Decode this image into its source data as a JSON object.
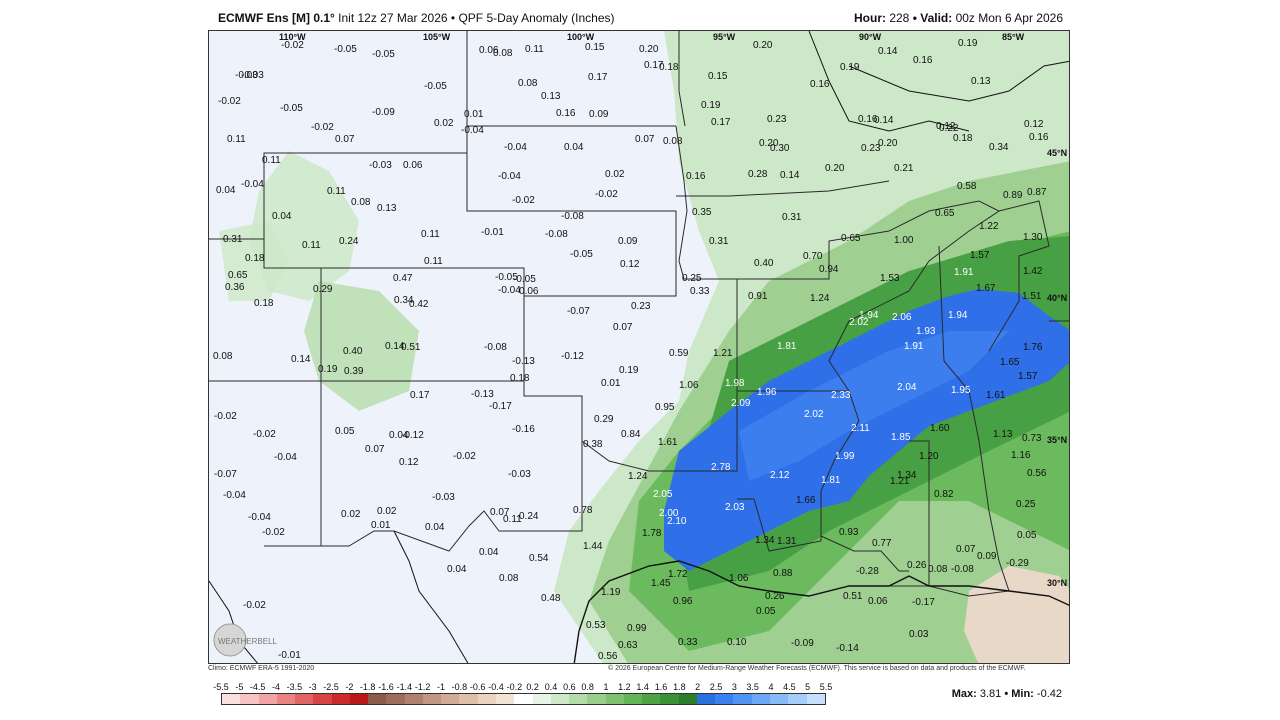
{
  "header": {
    "model": "ECMWF Ens [M] 0.1",
    "deg": "°",
    "init": " Init 12z 27 Mar 2026",
    "bullet": " • ",
    "product": "QPF 5-Day Anomaly (Inches)",
    "hour_label": "Hour:",
    "hour_value": " 228 ",
    "valid_label": "• Valid:",
    "valid_value": " 00z Mon 6 Apr 2026"
  },
  "lon_labels": [
    "110°W",
    "105°W",
    "100°W",
    "95°W",
    "90°W",
    "85°W"
  ],
  "lat_labels": [
    "45°N",
    "40°N",
    "35°N",
    "30°N"
  ],
  "footer": {
    "climo": "Climo: ECMWF ERA-5 1991-2020",
    "copyright": "© 2026 European Centre for Medium-Range Weather Forecasts (ECMWF). This service is based on data and products of the ECMWF."
  },
  "colorbar": {
    "labels": [
      "-5.5",
      "-5",
      "-4.5",
      "-4",
      "-3.5",
      "-3",
      "-2.5",
      "-2",
      "-1.8",
      "-1.6",
      "-1.4",
      "-1.2",
      "-1",
      "-0.8",
      "-0.6",
      "-0.4",
      "-0.2",
      "0.2",
      "0.4",
      "0.6",
      "0.8",
      "1",
      "1.2",
      "1.4",
      "1.6",
      "1.8",
      "2",
      "2.5",
      "3",
      "3.5",
      "4",
      "4.5",
      "5",
      "5.5"
    ],
    "colors": [
      "#fce0e0",
      "#f7c4c4",
      "#f0a4a4",
      "#e88484",
      "#e06464",
      "#d84444",
      "#cc2a2a",
      "#b81818",
      "#8a5a4a",
      "#9c6e5c",
      "#ae826e",
      "#c09682",
      "#d2ab96",
      "#e0bfaa",
      "#ecd3c0",
      "#f4e4d6",
      "#ffffff",
      "#e8f4e4",
      "#cfe8c8",
      "#b4dcaa",
      "#98cf8c",
      "#7ec270",
      "#64b458",
      "#4ea444",
      "#3a9236",
      "#2c7e2c",
      "#2a6fe0",
      "#3a80f0",
      "#5294f4",
      "#6ca8f6",
      "#88bcf8",
      "#a4cefa",
      "#c4e0fc"
    ],
    "max_label": "Max:",
    "max_value": " 3.81",
    "min_label": " • Min:",
    "min_value": " -0.42"
  },
  "logo_text": "WEATHERBELL",
  "values": [
    [
      "-0.02",
      290,
      45
    ],
    [
      "-0.05",
      343,
      49
    ],
    [
      "-0.05",
      381,
      54
    ],
    [
      "0.06",
      488,
      50
    ],
    [
      "0.08",
      502,
      53
    ],
    [
      "0.11",
      534,
      49
    ],
    [
      "0.15",
      594,
      47
    ],
    [
      "0.20",
      648,
      49
    ],
    [
      "0.20",
      762,
      45
    ],
    [
      "0.19",
      967,
      43
    ],
    [
      "-0.03",
      244,
      75
    ],
    [
      "-0.03",
      250,
      75
    ],
    [
      "-0.05",
      433,
      86
    ],
    [
      "0.08",
      527,
      83
    ],
    [
      "0.17",
      597,
      77
    ],
    [
      "0.17",
      653,
      65
    ],
    [
      "0.18",
      668,
      67
    ],
    [
      "0.15",
      717,
      76
    ],
    [
      "0.14",
      887,
      51
    ],
    [
      "0.16",
      922,
      60
    ],
    [
      "0.19",
      849,
      67
    ],
    [
      "0.16",
      819,
      84
    ],
    [
      "0.13",
      980,
      81
    ],
    [
      "-0.02",
      227,
      101
    ],
    [
      "-0.05",
      289,
      108
    ],
    [
      "-0.09",
      381,
      112
    ],
    [
      "0.13",
      550,
      96
    ],
    [
      "0.16",
      565,
      113
    ],
    [
      "0.09",
      598,
      114
    ],
    [
      "0.19",
      710,
      105
    ],
    [
      "0.02",
      443,
      123
    ],
    [
      "0.01",
      473,
      114
    ],
    [
      "-0.04",
      470,
      130
    ],
    [
      "-0.02",
      320,
      127
    ],
    [
      "0.07",
      344,
      139
    ],
    [
      "0.17",
      720,
      122
    ],
    [
      "0.23",
      776,
      119
    ],
    [
      "0.16",
      867,
      119
    ],
    [
      "0.14",
      883,
      120
    ],
    [
      "0.12",
      945,
      126
    ],
    [
      "0.22",
      948,
      128
    ],
    [
      "0.12",
      1033,
      124
    ],
    [
      "0.16",
      1038,
      137
    ],
    [
      "0.11",
      236,
      139
    ],
    [
      "0.07",
      644,
      139
    ],
    [
      "0.08",
      672,
      141
    ],
    [
      "0.20",
      768,
      143
    ],
    [
      "0.30",
      779,
      148
    ],
    [
      "0.23",
      870,
      148
    ],
    [
      "0.20",
      887,
      143
    ],
    [
      "0.18",
      962,
      138
    ],
    [
      "0.34",
      998,
      147
    ],
    [
      "0.11",
      271,
      160
    ],
    [
      "-0.03",
      378,
      165
    ],
    [
      "0.06",
      412,
      165
    ],
    [
      "-0.04",
      513,
      147
    ],
    [
      "0.04",
      573,
      147
    ],
    [
      "0.20",
      834,
      168
    ],
    [
      "0.21",
      903,
      168
    ],
    [
      "-0.04",
      250,
      184
    ],
    [
      "0.04",
      225,
      190
    ],
    [
      "0.11",
      336,
      191
    ],
    [
      "0.08",
      360,
      202
    ],
    [
      "0.13",
      386,
      208
    ],
    [
      "-0.04",
      507,
      176
    ],
    [
      "0.02",
      614,
      174
    ],
    [
      "0.16",
      695,
      176
    ],
    [
      "0.28",
      757,
      174
    ],
    [
      "0.14",
      789,
      175
    ],
    [
      "0.58",
      966,
      186
    ],
    [
      "0.89",
      1012,
      195
    ],
    [
      "0.87",
      1036,
      192
    ],
    [
      "-0.02",
      521,
      200
    ],
    [
      "-0.02",
      604,
      194
    ],
    [
      "0.04",
      281,
      216
    ],
    [
      "0.35",
      701,
      212
    ],
    [
      "0.31",
      791,
      217
    ],
    [
      "0.65",
      944,
      213
    ],
    [
      "-0.08",
      570,
      216
    ],
    [
      "0.11",
      430,
      234
    ],
    [
      "0.31",
      232,
      239
    ],
    [
      "0.11",
      311,
      245
    ],
    [
      "0.24",
      348,
      241
    ],
    [
      "-0.01",
      490,
      232
    ],
    [
      "-0.08",
      554,
      234
    ],
    [
      "0.09",
      627,
      241
    ],
    [
      "0.31",
      718,
      241
    ],
    [
      "0.65",
      850,
      238
    ],
    [
      "1.00",
      903,
      240
    ],
    [
      "1.22",
      988,
      226
    ],
    [
      "1.30",
      1032,
      237
    ],
    [
      "0.18",
      254,
      258
    ],
    [
      "0.11",
      433,
      261
    ],
    [
      "-0.05",
      579,
      254
    ],
    [
      "0.12",
      629,
      264
    ],
    [
      "0.40",
      763,
      263
    ],
    [
      "0.70",
      812,
      256
    ],
    [
      "0.94",
      828,
      269
    ],
    [
      "1.57",
      979,
      255
    ],
    [
      "0.65",
      237,
      275
    ],
    [
      "0.36",
      234,
      287
    ],
    [
      "0.47",
      402,
      278
    ],
    [
      "-0.05",
      504,
      277
    ],
    [
      "-0.05",
      522,
      279
    ],
    [
      "0.25",
      691,
      278
    ],
    [
      "1.53",
      889,
      278
    ],
    [
      "1.91",
      963,
      272
    ],
    [
      "1.42",
      1032,
      271
    ],
    [
      "0.29",
      322,
      289
    ],
    [
      "-0.04",
      507,
      290
    ],
    [
      "0.06",
      528,
      291
    ],
    [
      "0.33",
      699,
      291
    ],
    [
      "0.91",
      757,
      296
    ],
    [
      "1.24",
      819,
      298
    ],
    [
      "1.67",
      985,
      288
    ],
    [
      "1.51",
      1031,
      296
    ],
    [
      "0.18",
      263,
      303
    ],
    [
      "0.34",
      403,
      300
    ],
    [
      "0.42",
      418,
      304
    ],
    [
      "-0.07",
      576,
      311
    ],
    [
      "0.23",
      640,
      306
    ],
    [
      "1.94",
      868,
      315
    ],
    [
      "2.06",
      901,
      317
    ],
    [
      "1.94",
      957,
      315
    ],
    [
      "2.02",
      858,
      322
    ],
    [
      "0.07",
      622,
      327
    ],
    [
      "1.93",
      925,
      331
    ],
    [
      "-0.08",
      493,
      347
    ],
    [
      "0.14",
      394,
      346
    ],
    [
      "0.51",
      410,
      347
    ],
    [
      "0.40",
      352,
      351
    ],
    [
      "0.59",
      678,
      353
    ],
    [
      "1.21",
      722,
      353
    ],
    [
      "1.81",
      786,
      346
    ],
    [
      "1.91",
      913,
      346
    ],
    [
      "1.76",
      1032,
      347
    ],
    [
      "0.08",
      222,
      356
    ],
    [
      "0.14",
      300,
      359
    ],
    [
      "-0.12",
      570,
      356
    ],
    [
      "-0.13",
      521,
      361
    ],
    [
      "0.19",
      327,
      369
    ],
    [
      "0.39",
      353,
      371
    ],
    [
      "0.19",
      628,
      370
    ],
    [
      "1.65",
      1009,
      362
    ],
    [
      "0.18",
      519,
      378
    ],
    [
      "0.01",
      610,
      383
    ],
    [
      "1.06",
      688,
      385
    ],
    [
      "1.98",
      734,
      383
    ],
    [
      "1.96",
      766,
      392
    ],
    [
      "2.04",
      906,
      387
    ],
    [
      "1.95",
      960,
      390
    ],
    [
      "1.57",
      1027,
      376
    ],
    [
      "0.17",
      419,
      395
    ],
    [
      "-0.13",
      480,
      394
    ],
    [
      "-0.17",
      498,
      406
    ],
    [
      "2.09",
      740,
      403
    ],
    [
      "2.33",
      840,
      395
    ],
    [
      "1.61",
      995,
      395
    ],
    [
      "0.95",
      664,
      407
    ],
    [
      "-0.02",
      223,
      416
    ],
    [
      "0.29",
      603,
      419
    ],
    [
      "2.02",
      813,
      414
    ],
    [
      "0.84",
      630,
      434
    ],
    [
      "-0.16",
      521,
      429
    ],
    [
      "0.05",
      344,
      431
    ],
    [
      "0.04",
      398,
      435
    ],
    [
      "-0.12",
      410,
      435
    ],
    [
      "-0.02",
      262,
      434
    ],
    [
      "2.11",
      860,
      428
    ],
    [
      "1.60",
      939,
      428
    ],
    [
      "1.13",
      1002,
      434
    ],
    [
      "0.73",
      1031,
      438
    ],
    [
      "1.85",
      900,
      437
    ],
    [
      "0.38",
      592,
      444
    ],
    [
      "1.61",
      667,
      442
    ],
    [
      "0.07",
      374,
      449
    ],
    [
      "-0.04",
      283,
      457
    ],
    [
      "-0.02",
      462,
      456
    ],
    [
      "0.12",
      408,
      462
    ],
    [
      "2.78",
      720,
      467
    ],
    [
      "1.99",
      844,
      456
    ],
    [
      "1.20",
      928,
      456
    ],
    [
      "1.16",
      1020,
      455
    ],
    [
      "-0.07",
      223,
      474
    ],
    [
      "-0.03",
      517,
      474
    ],
    [
      "1.24",
      637,
      476
    ],
    [
      "2.12",
      779,
      475
    ],
    [
      "1.81",
      830,
      480
    ],
    [
      "1.34",
      906,
      475
    ],
    [
      "1.21",
      899,
      481
    ],
    [
      "0.56",
      1036,
      473
    ],
    [
      "-0.04",
      232,
      495
    ],
    [
      "-0.03",
      441,
      497
    ],
    [
      "2.05",
      662,
      494
    ],
    [
      "0.82",
      943,
      494
    ],
    [
      "1.66",
      805,
      500
    ],
    [
      "0.78",
      582,
      510
    ],
    [
      "2.03",
      734,
      507
    ],
    [
      "0.25",
      1025,
      504
    ],
    [
      "-0.04",
      257,
      517
    ],
    [
      "0.02",
      350,
      514
    ],
    [
      "0.02",
      386,
      511
    ],
    [
      "0.07",
      499,
      512
    ],
    [
      "0.11",
      512,
      519
    ],
    [
      "0.24",
      528,
      516
    ],
    [
      "2.00",
      668,
      513
    ],
    [
      "2.10",
      676,
      521
    ],
    [
      "0.01",
      380,
      525
    ],
    [
      "0.04",
      434,
      527
    ],
    [
      "-0.02",
      271,
      532
    ],
    [
      "1.78",
      651,
      533
    ],
    [
      "0.93",
      848,
      532
    ],
    [
      "0.05",
      1026,
      535
    ],
    [
      "1.34",
      764,
      540
    ],
    [
      "1.31",
      786,
      541
    ],
    [
      "1.44",
      592,
      546
    ],
    [
      "0.77",
      881,
      543
    ],
    [
      "0.04",
      488,
      552
    ],
    [
      "0.54",
      538,
      558
    ],
    [
      "0.07",
      965,
      549
    ],
    [
      "0.09",
      986,
      556
    ],
    [
      "0.04",
      456,
      569
    ],
    [
      "-0.29",
      1015,
      563
    ],
    [
      "0.26",
      916,
      565
    ],
    [
      "0.08",
      937,
      569
    ],
    [
      "-0.08",
      960,
      569
    ],
    [
      "1.72",
      677,
      574
    ],
    [
      "-0.28",
      865,
      571
    ],
    [
      "0.08",
      508,
      578
    ],
    [
      "1.45",
      660,
      583
    ],
    [
      "0.88",
      782,
      573
    ],
    [
      "1.06",
      738,
      578
    ],
    [
      "1.19",
      610,
      592
    ],
    [
      "0.48",
      550,
      598
    ],
    [
      "0.26",
      774,
      596
    ],
    [
      "0.51",
      852,
      596
    ],
    [
      "0.06",
      877,
      601
    ],
    [
      "0.96",
      682,
      601
    ],
    [
      "-0.02",
      252,
      605
    ],
    [
      "0.05",
      765,
      611
    ],
    [
      "-0.17",
      921,
      602
    ],
    [
      "0.53",
      595,
      625
    ],
    [
      "0.99",
      636,
      628
    ],
    [
      "0.63",
      627,
      645
    ],
    [
      "0.33",
      687,
      642
    ],
    [
      "0.10",
      736,
      642
    ],
    [
      "-0.09",
      800,
      643
    ],
    [
      "-0.14",
      845,
      648
    ],
    [
      "0.03",
      918,
      634
    ],
    [
      "0.56",
      607,
      656
    ],
    [
      "-0.01",
      287,
      655
    ]
  ]
}
